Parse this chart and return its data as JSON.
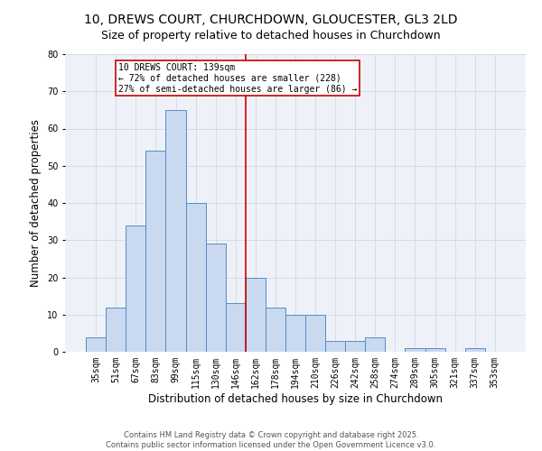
{
  "title_line1": "10, DREWS COURT, CHURCHDOWN, GLOUCESTER, GL3 2LD",
  "title_line2": "Size of property relative to detached houses in Churchdown",
  "xlabel": "Distribution of detached houses by size in Churchdown",
  "ylabel": "Number of detached properties",
  "bar_labels": [
    "35sqm",
    "51sqm",
    "67sqm",
    "83sqm",
    "99sqm",
    "115sqm",
    "130sqm",
    "146sqm",
    "162sqm",
    "178sqm",
    "194sqm",
    "210sqm",
    "226sqm",
    "242sqm",
    "258sqm",
    "274sqm",
    "289sqm",
    "305sqm",
    "321sqm",
    "337sqm",
    "353sqm"
  ],
  "bar_heights": [
    4,
    12,
    34,
    54,
    65,
    40,
    29,
    13,
    20,
    12,
    10,
    10,
    3,
    3,
    4,
    0,
    1,
    1,
    0,
    1,
    0
  ],
  "bar_color": "#c9d9f0",
  "bar_edge_color": "#5a8ac6",
  "vline_x_index": 7.5,
  "vline_color": "#cc0000",
  "annotation_line1": "10 DREWS COURT: 139sqm",
  "annotation_line2": "← 72% of detached houses are smaller (228)",
  "annotation_line3": "27% of semi-detached houses are larger (86) →",
  "annotation_box_color": "#cc0000",
  "annotation_text_color": "#000000",
  "ylim": [
    0,
    80
  ],
  "yticks": [
    0,
    10,
    20,
    30,
    40,
    50,
    60,
    70,
    80
  ],
  "grid_color": "#d0d8e8",
  "background_color": "#eef2f8",
  "footer_line1": "Contains HM Land Registry data © Crown copyright and database right 2025.",
  "footer_line2": "Contains public sector information licensed under the Open Government Licence v3.0.",
  "title_fontsize": 10,
  "axis_label_fontsize": 8.5,
  "tick_fontsize": 7,
  "annotation_fontsize": 7,
  "footer_fontsize": 6
}
